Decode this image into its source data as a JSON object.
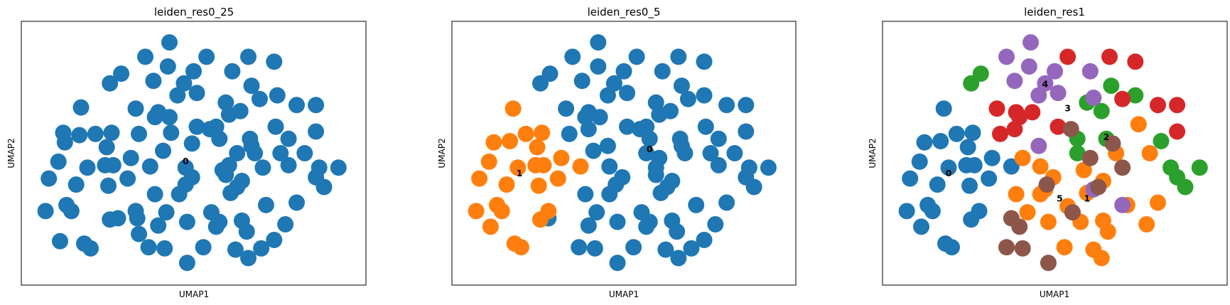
{
  "palette": [
    "#1f77b4",
    "#ff7f0e",
    "#2ca02c",
    "#d62728",
    "#9467bd",
    "#8c564b"
  ],
  "chart_data": [
    {
      "type": "scatter",
      "title": "leiden_res0_25",
      "xlabel": "UMAP1",
      "ylabel": "UMAP2",
      "xlim": [
        0,
        100
      ],
      "ylim": [
        0,
        100
      ],
      "grid": false,
      "legend": "on data",
      "cluster_labels": [
        {
          "text": "0",
          "x": 47.5,
          "y": 46.5
        }
      ],
      "points": [
        [
          42.5,
          96
        ],
        [
          35,
          90
        ],
        [
          42,
          86
        ],
        [
          54,
          90
        ],
        [
          67,
          90
        ],
        [
          75,
          88
        ],
        [
          27.5,
          83
        ],
        [
          24,
          79
        ],
        [
          37.5,
          80
        ],
        [
          50,
          84
        ],
        [
          62,
          84
        ],
        [
          47,
          79
        ],
        [
          51,
          75
        ],
        [
          45,
          74
        ],
        [
          68,
          78
        ],
        [
          76,
          74
        ],
        [
          60,
          71
        ],
        [
          70.5,
          72.5
        ],
        [
          15,
          69
        ],
        [
          32,
          68.5
        ],
        [
          39,
          67
        ],
        [
          42.5,
          65
        ],
        [
          38,
          65
        ],
        [
          82,
          70
        ],
        [
          88,
          70
        ],
        [
          9.5,
          58.5
        ],
        [
          14.5,
          57.5
        ],
        [
          19.5,
          58
        ],
        [
          24.5,
          58.5
        ],
        [
          33,
          58
        ],
        [
          43,
          58.5
        ],
        [
          51,
          61
        ],
        [
          55,
          60
        ],
        [
          57,
          61
        ],
        [
          61,
          66
        ],
        [
          64.5,
          67.5
        ],
        [
          75.5,
          61
        ],
        [
          79.5,
          56
        ],
        [
          88,
          59
        ],
        [
          10,
          54.5
        ],
        [
          23,
          52.5
        ],
        [
          40.5,
          51
        ],
        [
          49.5,
          54
        ],
        [
          58,
          56
        ],
        [
          67.5,
          56
        ],
        [
          68,
          53
        ],
        [
          69,
          50
        ],
        [
          63.5,
          50
        ],
        [
          77,
          50
        ],
        [
          79.5,
          45
        ],
        [
          84.5,
          50
        ],
        [
          8,
          46.5
        ],
        [
          17,
          44
        ],
        [
          22.5,
          45
        ],
        [
          25,
          45
        ],
        [
          30.5,
          48
        ],
        [
          36.5,
          44.5
        ],
        [
          47.5,
          44
        ],
        [
          59,
          43
        ],
        [
          61,
          45
        ],
        [
          71.5,
          44
        ],
        [
          49.5,
          40
        ],
        [
          47.5,
          37
        ],
        [
          60,
          41
        ],
        [
          5,
          39.5
        ],
        [
          13.5,
          37
        ],
        [
          23.5,
          36.5
        ],
        [
          29.5,
          39.5
        ],
        [
          65,
          38.5
        ],
        [
          63.5,
          36
        ],
        [
          61.5,
          33.5
        ],
        [
          89,
          44
        ],
        [
          95,
          44
        ],
        [
          88,
          40
        ],
        [
          90.5,
          36
        ],
        [
          38,
          33
        ],
        [
          45.5,
          33
        ],
        [
          72.5,
          28.5
        ],
        [
          82,
          29.5
        ],
        [
          10.5,
          28.5
        ],
        [
          4,
          26
        ],
        [
          12,
          26
        ],
        [
          26.5,
          23
        ],
        [
          32,
          26
        ],
        [
          41.5,
          25.5
        ],
        [
          55.5,
          25.5
        ],
        [
          24,
          22.5
        ],
        [
          32.5,
          23
        ],
        [
          48,
          21.5
        ],
        [
          58,
          21.5
        ],
        [
          65,
          22
        ],
        [
          78.5,
          20.5
        ],
        [
          39,
          20
        ],
        [
          57,
          19.5
        ],
        [
          66.5,
          17.5
        ],
        [
          33,
          16.5
        ],
        [
          8.5,
          13.5
        ],
        [
          16,
          12.5
        ],
        [
          18,
          10.5
        ],
        [
          36,
          11
        ],
        [
          41,
          10.5
        ],
        [
          53,
          11
        ],
        [
          63,
          10
        ],
        [
          71,
          10.5
        ],
        [
          75,
          14
        ],
        [
          67,
          6.5
        ],
        [
          48,
          4.5
        ]
      ]
    },
    {
      "type": "scatter",
      "title": "leiden_res0_5",
      "xlabel": "UMAP1",
      "ylabel": "UMAP2",
      "xlim": [
        0,
        100
      ],
      "ylim": [
        0,
        100
      ],
      "grid": false,
      "legend": "on data",
      "cluster_labels": [
        {
          "text": "0",
          "x": 58,
          "y": 51.5
        },
        {
          "text": "1",
          "x": 17.5,
          "y": 41.5
        }
      ],
      "points": [
        [
          42,
          96,
          0
        ],
        [
          34,
          90,
          0
        ],
        [
          42,
          86,
          0
        ],
        [
          54,
          90,
          0
        ],
        [
          67,
          90,
          0
        ],
        [
          75,
          88,
          0
        ],
        [
          27,
          83,
          0
        ],
        [
          24,
          79,
          0
        ],
        [
          37,
          80,
          0
        ],
        [
          50,
          84,
          0
        ],
        [
          62,
          84,
          0
        ],
        [
          47,
          79,
          0
        ],
        [
          51,
          75,
          0
        ],
        [
          45,
          74,
          0
        ],
        [
          68,
          78,
          0
        ],
        [
          75,
          74,
          0
        ],
        [
          60,
          71,
          0
        ],
        [
          70,
          72.5,
          0
        ],
        [
          32,
          68.5,
          0
        ],
        [
          39,
          67,
          0
        ],
        [
          42.5,
          65,
          0
        ],
        [
          38,
          65,
          0
        ],
        [
          82,
          70,
          0
        ],
        [
          88,
          70,
          0
        ],
        [
          33,
          58,
          0
        ],
        [
          39,
          60,
          0
        ],
        [
          51,
          61,
          0
        ],
        [
          55,
          60,
          0
        ],
        [
          57,
          61,
          0
        ],
        [
          61,
          66,
          0
        ],
        [
          64.5,
          67.5,
          0
        ],
        [
          75.5,
          61,
          0
        ],
        [
          79.5,
          56,
          0
        ],
        [
          88,
          59,
          0
        ],
        [
          40.5,
          51,
          0
        ],
        [
          45,
          53,
          0
        ],
        [
          58,
          56,
          0
        ],
        [
          67.5,
          56,
          0
        ],
        [
          68,
          53,
          0
        ],
        [
          69,
          50,
          0
        ],
        [
          77,
          50,
          0
        ],
        [
          79.5,
          45,
          0
        ],
        [
          84.5,
          50,
          0
        ],
        [
          57,
          50,
          0
        ],
        [
          61,
          48,
          0
        ],
        [
          60,
          44,
          0
        ],
        [
          45.5,
          44.5,
          0
        ],
        [
          49.5,
          40,
          0
        ],
        [
          47.5,
          37,
          0
        ],
        [
          60,
          41,
          0
        ],
        [
          65,
          38.5,
          0
        ],
        [
          63.5,
          36,
          0
        ],
        [
          61.5,
          33.5,
          0
        ],
        [
          89,
          44,
          0
        ],
        [
          95,
          44,
          0
        ],
        [
          88,
          40,
          0
        ],
        [
          90.5,
          36,
          0
        ],
        [
          38,
          33,
          0
        ],
        [
          45.5,
          33,
          0
        ],
        [
          72.5,
          28.5,
          0
        ],
        [
          82,
          29.5,
          0
        ],
        [
          55.5,
          25.5,
          0
        ],
        [
          26.5,
          23,
          0
        ],
        [
          41.5,
          25.5,
          0
        ],
        [
          48,
          21.5,
          0
        ],
        [
          58,
          21.5,
          0
        ],
        [
          65,
          22,
          0
        ],
        [
          78.5,
          20.5,
          0
        ],
        [
          39,
          20,
          0
        ],
        [
          57,
          19.5,
          0
        ],
        [
          66.5,
          17.5,
          0
        ],
        [
          36,
          11,
          0
        ],
        [
          41,
          10.5,
          0
        ],
        [
          53,
          11,
          0
        ],
        [
          63,
          10,
          0
        ],
        [
          71,
          10.5,
          0
        ],
        [
          75,
          14,
          0
        ],
        [
          67,
          6.5,
          0
        ],
        [
          48,
          4.5,
          0
        ],
        [
          15.5,
          68.5,
          1
        ],
        [
          19.5,
          58,
          1
        ],
        [
          24.5,
          58.5,
          1
        ],
        [
          9.5,
          54.5,
          1
        ],
        [
          14.5,
          55,
          1
        ],
        [
          23,
          52.5,
          1
        ],
        [
          8,
          46.5,
          1
        ],
        [
          17,
          44,
          1
        ],
        [
          22.5,
          45,
          1
        ],
        [
          25,
          45,
          1
        ],
        [
          30.5,
          48,
          1
        ],
        [
          36.5,
          44.5,
          1
        ],
        [
          5,
          39.5,
          1
        ],
        [
          13.5,
          37,
          1
        ],
        [
          23.5,
          36.5,
          1
        ],
        [
          29.5,
          39.5,
          1
        ],
        [
          10.5,
          28.5,
          1
        ],
        [
          4,
          26,
          1
        ],
        [
          12,
          26,
          1
        ],
        [
          26.5,
          26,
          1
        ],
        [
          24,
          22.5,
          1
        ],
        [
          8.5,
          19.5,
          1
        ],
        [
          16,
          12.5,
          1
        ],
        [
          18,
          11,
          1
        ]
      ]
    },
    {
      "type": "scatter",
      "title": "leiden_res1",
      "xlabel": "UMAP1",
      "ylabel": "UMAP2",
      "xlim": [
        0,
        100
      ],
      "ylim": [
        0,
        100
      ],
      "grid": false,
      "legend": "on data",
      "cluster_labels": [
        {
          "text": "0",
          "x": 17,
          "y": 41.5
        },
        {
          "text": "1",
          "x": 60,
          "y": 31
        },
        {
          "text": "2",
          "x": 66,
          "y": 56.5
        },
        {
          "text": "3",
          "x": 54,
          "y": 68.5
        },
        {
          "text": "4",
          "x": 47,
          "y": 78.5
        },
        {
          "text": "5",
          "x": 51.5,
          "y": 31
        }
      ],
      "points": [
        [
          15.5,
          68.5,
          0
        ],
        [
          19.5,
          58,
          0
        ],
        [
          24.5,
          58.5,
          0
        ],
        [
          9.5,
          54.5,
          0
        ],
        [
          14.5,
          55,
          0
        ],
        [
          23,
          52.5,
          0
        ],
        [
          8,
          46.5,
          0
        ],
        [
          17,
          44,
          0
        ],
        [
          22.5,
          45,
          0
        ],
        [
          25,
          45,
          0
        ],
        [
          30.5,
          48,
          0
        ],
        [
          36.5,
          44.5,
          0
        ],
        [
          5,
          39.5,
          0
        ],
        [
          13.5,
          37,
          0
        ],
        [
          23.5,
          36.5,
          0
        ],
        [
          29.5,
          39.5,
          0
        ],
        [
          10.5,
          28.5,
          0
        ],
        [
          4,
          26,
          0
        ],
        [
          12,
          26,
          0
        ],
        [
          26.5,
          26,
          0
        ],
        [
          24,
          22.5,
          0
        ],
        [
          8.5,
          19.5,
          0
        ],
        [
          16,
          12.5,
          0
        ],
        [
          18,
          11,
          0
        ],
        [
          40,
          48,
          1
        ],
        [
          45.5,
          44.5,
          1
        ],
        [
          38,
          33,
          1
        ],
        [
          45.5,
          33,
          1
        ],
        [
          49.5,
          40,
          1
        ],
        [
          59,
          43,
          1
        ],
        [
          60,
          33.5,
          1
        ],
        [
          65,
          38.5,
          1
        ],
        [
          69,
          50,
          1
        ],
        [
          72.5,
          28.5,
          1
        ],
        [
          82,
          29.5,
          1
        ],
        [
          55.5,
          25.5,
          1
        ],
        [
          41.5,
          25.5,
          1
        ],
        [
          48,
          21.5,
          1
        ],
        [
          58,
          21.5,
          1
        ],
        [
          65,
          22,
          1
        ],
        [
          78.5,
          20.5,
          1
        ],
        [
          66.5,
          17.5,
          1
        ],
        [
          53,
          11,
          1
        ],
        [
          62,
          10,
          1
        ],
        [
          64.5,
          6.5,
          1
        ],
        [
          54,
          28,
          1
        ],
        [
          47,
          35,
          1
        ],
        [
          76,
          62,
          1
        ],
        [
          79.5,
          50,
          1
        ],
        [
          24,
          79,
          2
        ],
        [
          27,
          83,
          2
        ],
        [
          67.5,
          78,
          2
        ],
        [
          75,
          74,
          2
        ],
        [
          60,
          71,
          2
        ],
        [
          64.5,
          67.5,
          2
        ],
        [
          66,
          56,
          2
        ],
        [
          57,
          56,
          2
        ],
        [
          57,
          50,
          2
        ],
        [
          83,
          55,
          2
        ],
        [
          86,
          44,
          2
        ],
        [
          90.5,
          36,
          2
        ],
        [
          88,
          40,
          2
        ],
        [
          95,
          44,
          2
        ],
        [
          54,
          90,
          3
        ],
        [
          67,
          90,
          3
        ],
        [
          75,
          88,
          3
        ],
        [
          32,
          68.5,
          3
        ],
        [
          38,
          67,
          3
        ],
        [
          39,
          65,
          3
        ],
        [
          43,
          67,
          3
        ],
        [
          37.5,
          60,
          3
        ],
        [
          33,
          58,
          3
        ],
        [
          51,
          61,
          3
        ],
        [
          71,
          72.5,
          3
        ],
        [
          82,
          70,
          3
        ],
        [
          88,
          70,
          3
        ],
        [
          88,
          59,
          3
        ],
        [
          42.5,
          96,
          4
        ],
        [
          35,
          90,
          4
        ],
        [
          42,
          86,
          4
        ],
        [
          37.5,
          80,
          4
        ],
        [
          50,
          84,
          4
        ],
        [
          47,
          79,
          4
        ],
        [
          51,
          75,
          4
        ],
        [
          45,
          74,
          4
        ],
        [
          61,
          84,
          4
        ],
        [
          62,
          73,
          4
        ],
        [
          45,
          53,
          4
        ],
        [
          62,
          35,
          4
        ],
        [
          71,
          28.5,
          4
        ],
        [
          55,
          60,
          5
        ],
        [
          68,
          54,
          5
        ],
        [
          61,
          48,
          5
        ],
        [
          71,
          44,
          5
        ],
        [
          63.5,
          36,
          5
        ],
        [
          47.5,
          37,
          5
        ],
        [
          55.5,
          25.5,
          5
        ],
        [
          36.5,
          23,
          5
        ],
        [
          39,
          19.5,
          5
        ],
        [
          35,
          11,
          5
        ],
        [
          40,
          10.5,
          5
        ],
        [
          48,
          4.5,
          5
        ]
      ]
    }
  ]
}
